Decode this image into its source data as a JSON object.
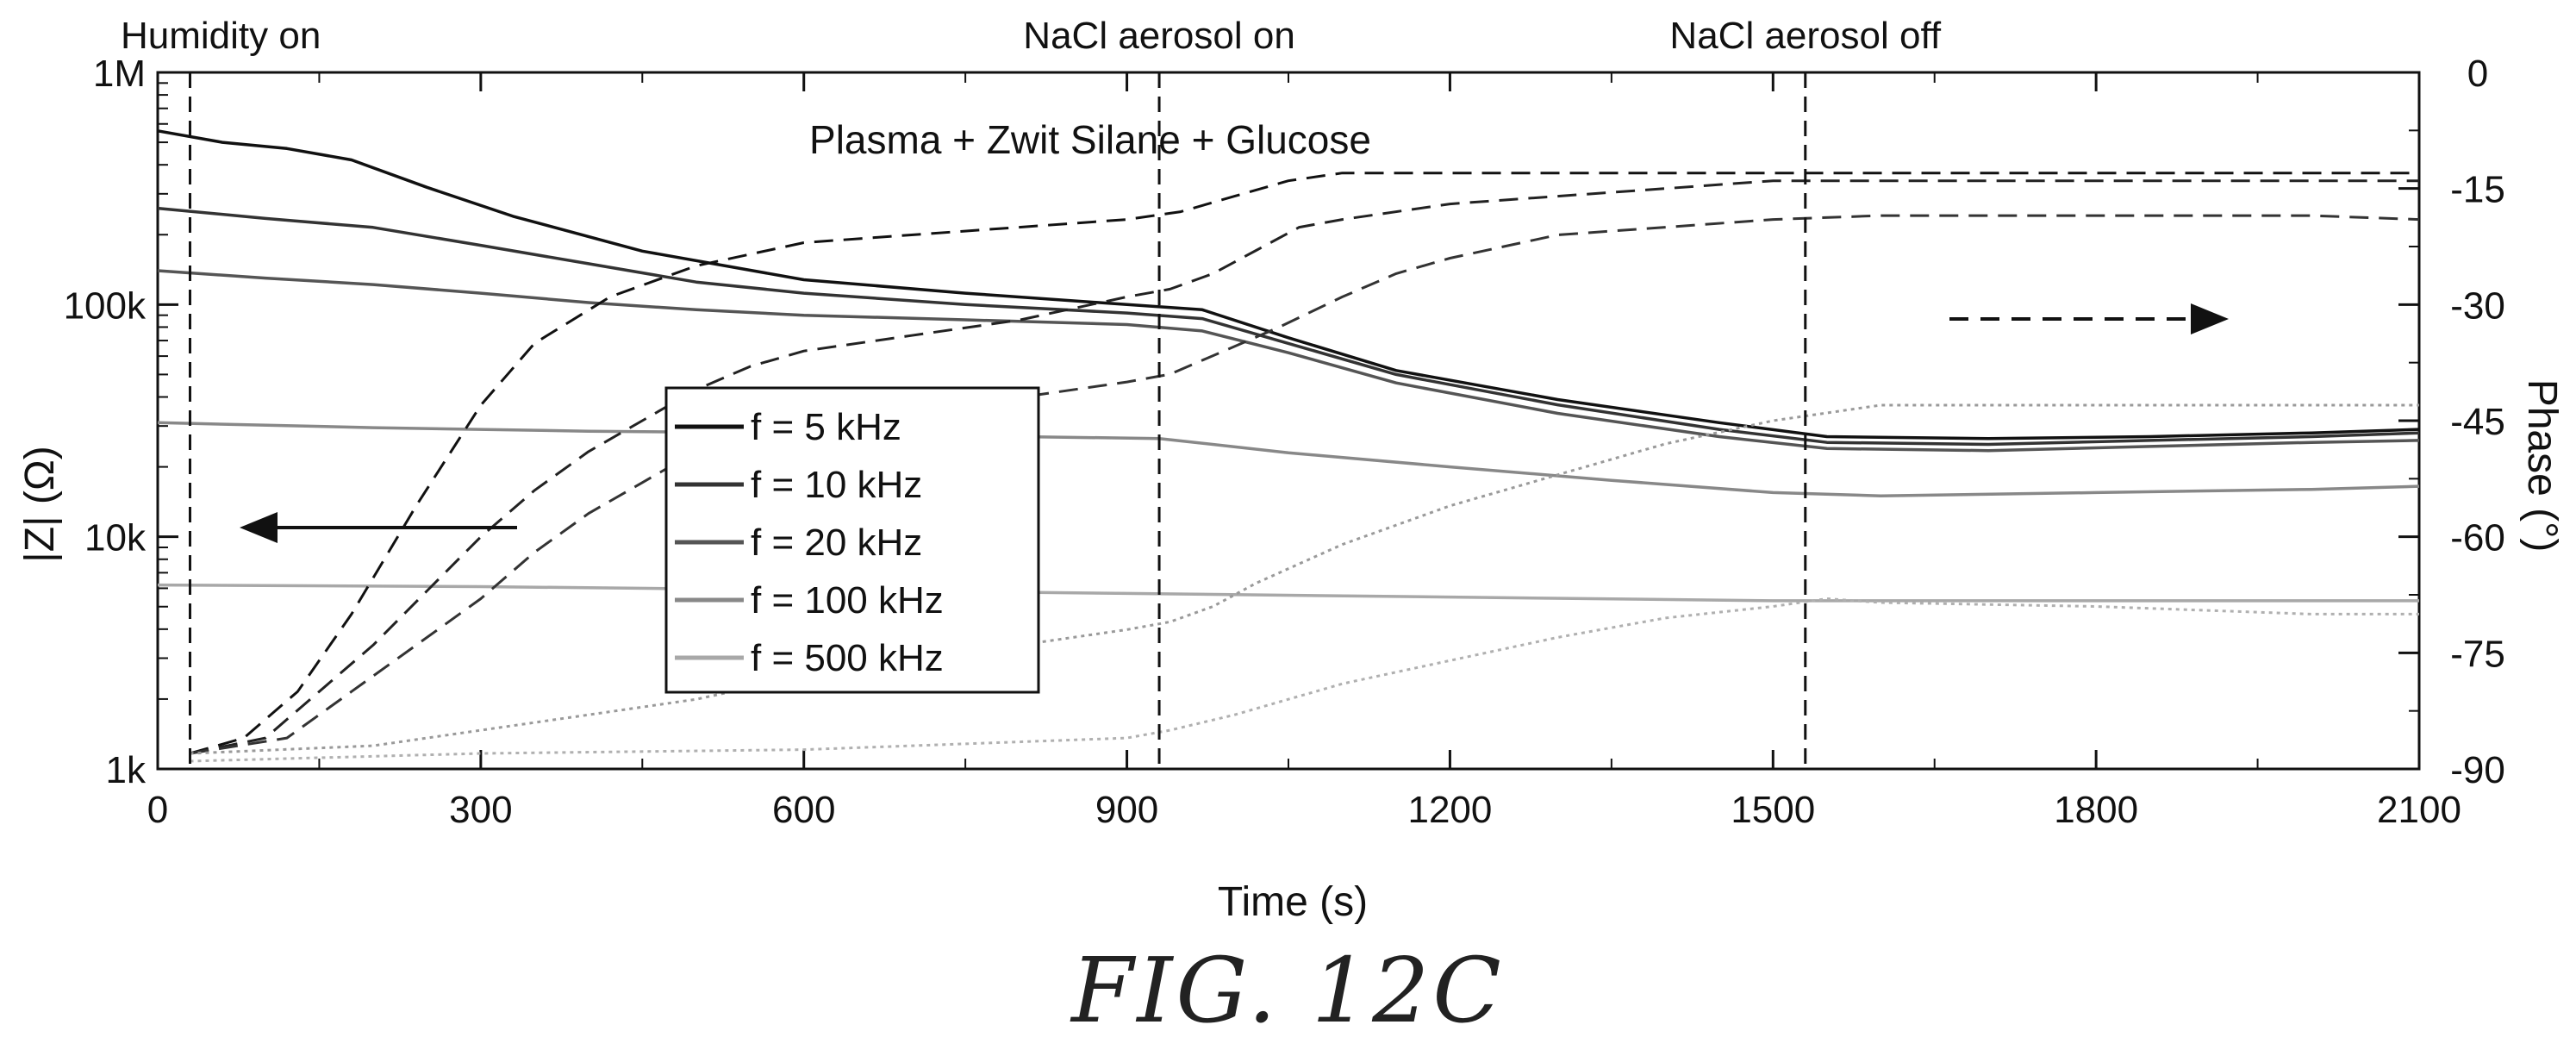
{
  "chart_data": {
    "type": "line",
    "title": "Plasma + Zwit Silane + Glucose",
    "xlabel": "Time (s)",
    "ylabel_left": "|Z| (Ω)",
    "ylabel_right": "Phase (°)",
    "xlim": [
      0,
      2100
    ],
    "ylim_left": [
      1000,
      1000000
    ],
    "ylim_right": [
      -90,
      0
    ],
    "left_scale": "log",
    "x_ticks": [
      "0",
      "300",
      "600",
      "900",
      "1200",
      "1500",
      "1800",
      "2100"
    ],
    "x_tick_values": [
      0,
      300,
      600,
      900,
      1200,
      1500,
      1800,
      2100
    ],
    "left_ticks": [
      "1k",
      "10k",
      "100k",
      "1M"
    ],
    "left_tick_values": [
      1000,
      10000,
      100000,
      1000000
    ],
    "right_ticks": [
      "0",
      "-15",
      "-30",
      "-45",
      "-60",
      "-75",
      "-90"
    ],
    "right_tick_values": [
      0,
      -15,
      -30,
      -45,
      -60,
      -75,
      -90
    ],
    "grid": false,
    "legend_position": "center-left",
    "events": [
      {
        "label": "Humidity on",
        "x": 30
      },
      {
        "label": "NaCl aerosol on",
        "x": 930
      },
      {
        "label": "NaCl aerosol off",
        "x": 1530
      }
    ],
    "series": [
      {
        "name": "f = 5 kHz",
        "axis": "left",
        "color": "#111111",
        "x": [
          0,
          60,
          120,
          180,
          250,
          330,
          450,
          600,
          750,
          900,
          970,
          1050,
          1150,
          1300,
          1450,
          1550,
          1700,
          1850,
          2000,
          2100
        ],
        "y": [
          560000,
          500000,
          470000,
          420000,
          320000,
          240000,
          170000,
          128000,
          112000,
          100000,
          95000,
          72000,
          52000,
          39000,
          31000,
          27000,
          26500,
          27000,
          28000,
          29000
        ]
      },
      {
        "name": "f = 10 kHz",
        "axis": "left",
        "color": "#333333",
        "x": [
          0,
          100,
          200,
          300,
          400,
          500,
          600,
          750,
          900,
          970,
          1050,
          1150,
          1300,
          1450,
          1550,
          1700,
          1850,
          2000,
          2100
        ],
        "y": [
          260000,
          235000,
          215000,
          180000,
          150000,
          125000,
          112000,
          100000,
          92000,
          87000,
          68000,
          50000,
          37000,
          29000,
          25500,
          25000,
          26000,
          27000,
          28000
        ]
      },
      {
        "name": "f = 20 kHz",
        "axis": "left",
        "color": "#555555",
        "x": [
          0,
          100,
          200,
          300,
          400,
          500,
          600,
          750,
          900,
          970,
          1050,
          1150,
          1300,
          1450,
          1550,
          1700,
          1850,
          2000,
          2100
        ],
        "y": [
          140000,
          130000,
          122000,
          112000,
          102000,
          95000,
          90000,
          86000,
          82000,
          77000,
          62000,
          46000,
          34000,
          27000,
          24000,
          23500,
          24500,
          25500,
          26000
        ]
      },
      {
        "name": "f = 100 kHz",
        "axis": "left",
        "color": "#888888",
        "x": [
          0,
          200,
          400,
          600,
          800,
          930,
          1050,
          1200,
          1350,
          1500,
          1600,
          1800,
          2000,
          2100
        ],
        "y": [
          31000,
          29500,
          28500,
          28000,
          27000,
          26500,
          23000,
          20000,
          17500,
          15500,
          15000,
          15500,
          16000,
          16500
        ]
      },
      {
        "name": "f = 500 kHz",
        "axis": "left",
        "color": "#a8a8a8",
        "x": [
          0,
          300,
          600,
          900,
          1200,
          1500,
          1800,
          2100
        ],
        "y": [
          6200,
          6100,
          5900,
          5700,
          5500,
          5300,
          5300,
          5300
        ]
      },
      {
        "name": "",
        "axis": "right",
        "dash": "large",
        "color": "#111111",
        "x": [
          30,
          80,
          130,
          180,
          240,
          300,
          350,
          420,
          500,
          600,
          700,
          800,
          900,
          950,
          1000,
          1050,
          1100,
          1200,
          1400,
          1600,
          1800,
          2000,
          2100
        ],
        "y": [
          -88,
          -86,
          -80,
          -70,
          -56,
          -43,
          -35,
          -29,
          -25,
          -22,
          -21,
          -20,
          -19,
          -18,
          -16,
          -14,
          -13,
          -13,
          -13,
          -13,
          -13,
          -13,
          -13
        ]
      },
      {
        "name": "",
        "axis": "right",
        "dash": "large",
        "color": "#222222",
        "x": [
          30,
          100,
          150,
          200,
          250,
          300,
          350,
          400,
          450,
          500,
          550,
          600,
          700,
          800,
          900,
          940,
          980,
          1020,
          1060,
          1100,
          1200,
          1300,
          1400,
          1500,
          1600,
          1800,
          2000,
          2100
        ],
        "y": [
          -88,
          -86,
          -80,
          -74,
          -67,
          -60,
          -54,
          -49,
          -45,
          -41,
          -38,
          -36,
          -34,
          -32,
          -29,
          -28,
          -26,
          -23,
          -20,
          -19,
          -17,
          -16,
          -15,
          -14,
          -14,
          -14,
          -14,
          -14
        ]
      },
      {
        "name": "",
        "axis": "right",
        "dash": "large",
        "color": "#333333",
        "x": [
          30,
          120,
          180,
          240,
          300,
          350,
          400,
          450,
          500,
          600,
          700,
          800,
          900,
          940,
          990,
          1040,
          1100,
          1150,
          1200,
          1300,
          1400,
          1500,
          1600,
          1800,
          2000,
          2100
        ],
        "y": [
          -88,
          -86,
          -80,
          -74,
          -68,
          -62,
          -57,
          -53,
          -49,
          -46,
          -43,
          -42,
          -40,
          -39,
          -36,
          -33,
          -29,
          -26,
          -24,
          -21,
          -20,
          -19,
          -18.5,
          -18.5,
          -18.5,
          -19
        ]
      },
      {
        "name": "",
        "axis": "right",
        "dash": "dot",
        "color": "#9a9a9a",
        "x": [
          30,
          200,
          300,
          400,
          500,
          600,
          700,
          800,
          900,
          940,
          980,
          1020,
          1100,
          1200,
          1300,
          1400,
          1500,
          1550,
          1600,
          1800,
          2000,
          2100
        ],
        "y": [
          -88,
          -87,
          -85,
          -83,
          -81,
          -78,
          -76,
          -74,
          -72,
          -71,
          -69,
          -66,
          -61,
          -56,
          -52,
          -48,
          -45,
          -44,
          -43,
          -43,
          -43,
          -43
        ]
      },
      {
        "name": "",
        "axis": "right",
        "dash": "dot",
        "color": "#b0b0b0",
        "x": [
          30,
          300,
          600,
          900,
          940,
          1000,
          1100,
          1200,
          1300,
          1400,
          1500,
          1550,
          1600,
          1800,
          2000,
          2100
        ],
        "y": [
          -89,
          -88,
          -87.5,
          -86,
          -85,
          -83,
          -79,
          -76,
          -73,
          -70.5,
          -69,
          -68,
          -68.5,
          -69,
          -70,
          -70
        ]
      }
    ]
  }
}
